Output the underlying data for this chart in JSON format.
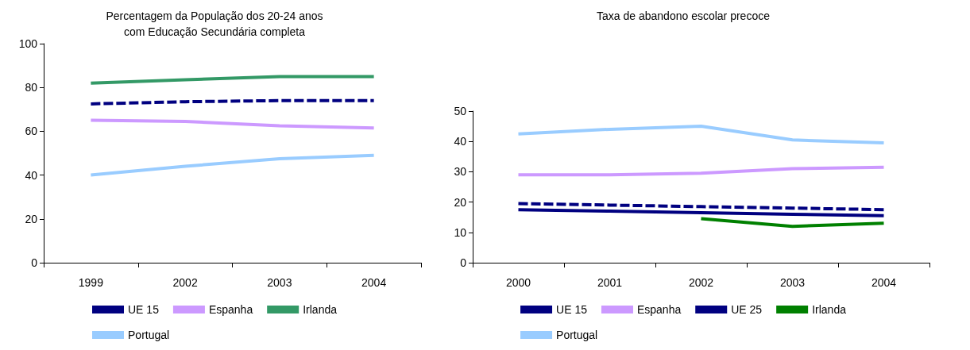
{
  "chart_data": [
    {
      "type": "line",
      "title": "Percentagem da População dos 20-24 anos\ncom Educação Secundária completa",
      "categories": [
        "1999",
        "2002",
        "2003",
        "2004"
      ],
      "ylim": [
        0,
        100
      ],
      "yticks": [
        0,
        20,
        40,
        60,
        80,
        100
      ],
      "grid": false,
      "legend": "bottom",
      "marker": "none",
      "series": [
        {
          "name": "UE 15",
          "color": "#000080",
          "line_style": "dashed",
          "values": [
            72.5,
            73.5,
            74,
            74
          ]
        },
        {
          "name": "Espanha",
          "color": "#cc99ff",
          "line_style": "solid",
          "values": [
            65,
            64.5,
            62.5,
            61.5
          ]
        },
        {
          "name": "Irlanda",
          "color": "#339966",
          "line_style": "solid",
          "values": [
            82,
            83.5,
            85,
            85
          ]
        },
        {
          "name": "Portugal",
          "color": "#99ccff",
          "line_style": "solid",
          "values": [
            40,
            44,
            47.5,
            49
          ]
        }
      ]
    },
    {
      "type": "line",
      "title": "Taxa de abandono escolar precoce",
      "categories": [
        "2000",
        "2001",
        "2002",
        "2003",
        "2004"
      ],
      "ylim": [
        0,
        50
      ],
      "yticks": [
        0,
        10,
        20,
        30,
        40,
        50
      ],
      "grid": false,
      "legend": "bottom",
      "marker": "none",
      "series": [
        {
          "name": "UE 15",
          "color": "#000080",
          "line_style": "dashed",
          "values": [
            19.5,
            19,
            18.5,
            18,
            17.5
          ]
        },
        {
          "name": "Espanha",
          "color": "#cc99ff",
          "line_style": "solid",
          "values": [
            29,
            29,
            29.5,
            31,
            31.5
          ]
        },
        {
          "name": "UE 25",
          "color": "#000080",
          "line_style": "solid",
          "values": [
            17.5,
            17,
            16.5,
            16,
            15.5
          ]
        },
        {
          "name": "Irlanda",
          "color": "#008000",
          "line_style": "solid",
          "values": [
            null,
            null,
            14.5,
            12,
            13
          ]
        },
        {
          "name": "Portugal",
          "color": "#99ccff",
          "line_style": "solid",
          "values": [
            42.5,
            44,
            45,
            40.5,
            39.5
          ]
        }
      ]
    }
  ]
}
